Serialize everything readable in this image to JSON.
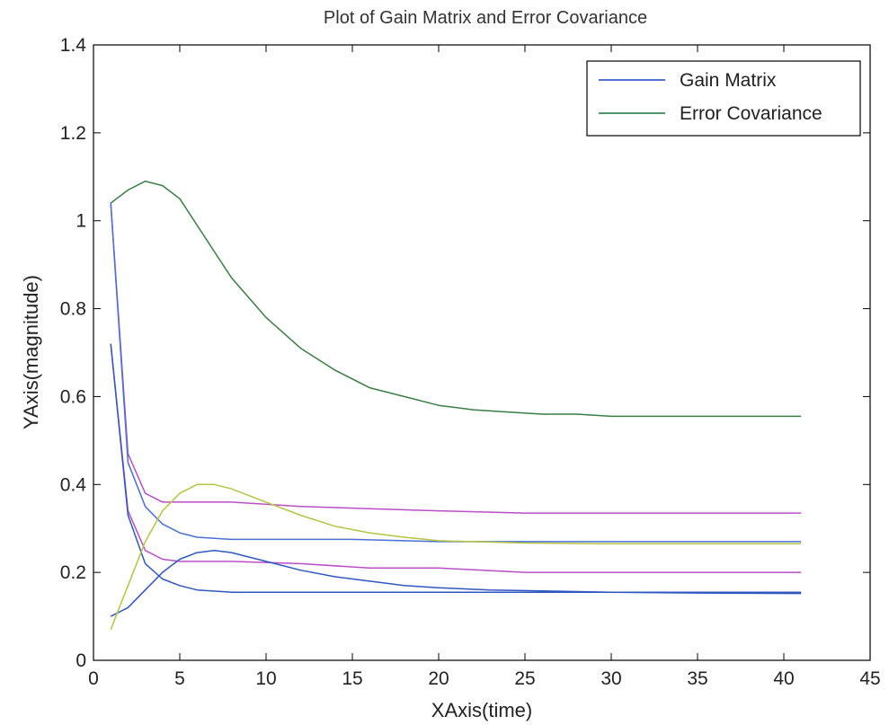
{
  "chart_data": {
    "type": "line",
    "title": "Plot of Gain Matrix and Error Covariance",
    "xlabel": "XAxis(time)",
    "ylabel": "YAxis(magnitude)",
    "xlim": [
      0,
      45
    ],
    "ylim": [
      0,
      1.4
    ],
    "xticks": [
      0,
      5,
      10,
      15,
      20,
      25,
      30,
      35,
      40,
      45
    ],
    "yticks": [
      0,
      0.2,
      0.4,
      0.6,
      0.8,
      1,
      1.2,
      1.4
    ],
    "xtick_labels": [
      "0",
      "5",
      "10",
      "15",
      "20",
      "25",
      "30",
      "35",
      "40",
      "45"
    ],
    "ytick_labels": [
      "0",
      "0.2",
      "0.4",
      "0.6",
      "0.8",
      "1",
      "1.2",
      "1.4"
    ],
    "grid": false,
    "legend": {
      "position": "top-right",
      "entries": [
        {
          "label": "Gain Matrix",
          "color": "#3a5fcd"
        },
        {
          "label": "Error Covariance",
          "color": "#2e8b57"
        }
      ]
    },
    "series": [
      {
        "color": "#3a7d44",
        "x": [
          1,
          2,
          3,
          4,
          5,
          6,
          7,
          8,
          10,
          12,
          14,
          16,
          18,
          20,
          22,
          24,
          26,
          28,
          30,
          32,
          35,
          38,
          41
        ],
        "y": [
          1.04,
          1.07,
          1.09,
          1.08,
          1.05,
          0.99,
          0.93,
          0.87,
          0.78,
          0.71,
          0.66,
          0.62,
          0.6,
          0.58,
          0.57,
          0.565,
          0.56,
          0.56,
          0.555,
          0.555,
          0.555,
          0.555,
          0.555
        ]
      },
      {
        "color": "#b94fc6",
        "x": [
          1,
          2,
          3,
          4,
          5,
          8,
          12,
          16,
          20,
          25,
          30,
          35,
          41
        ],
        "y": [
          1.04,
          0.47,
          0.38,
          0.36,
          0.36,
          0.36,
          0.35,
          0.345,
          0.34,
          0.335,
          0.335,
          0.335,
          0.335
        ]
      },
      {
        "color": "#b94fc6",
        "x": [
          1,
          2,
          3,
          4,
          5,
          8,
          12,
          16,
          20,
          25,
          30,
          35,
          41
        ],
        "y": [
          0.72,
          0.34,
          0.25,
          0.23,
          0.225,
          0.225,
          0.22,
          0.21,
          0.21,
          0.2,
          0.2,
          0.2,
          0.2
        ]
      },
      {
        "color": "#4a6fd8",
        "x": [
          1,
          2,
          3,
          4,
          5,
          6,
          8,
          10,
          15,
          20,
          25,
          30,
          35,
          41
        ],
        "y": [
          1.04,
          0.45,
          0.35,
          0.31,
          0.29,
          0.28,
          0.275,
          0.275,
          0.275,
          0.27,
          0.27,
          0.27,
          0.27,
          0.27
        ]
      },
      {
        "color": "#3056c0",
        "x": [
          1,
          2,
          3,
          4,
          5,
          6,
          8,
          10,
          15,
          20,
          25,
          30,
          35,
          41
        ],
        "y": [
          0.72,
          0.33,
          0.22,
          0.185,
          0.17,
          0.16,
          0.155,
          0.155,
          0.155,
          0.155,
          0.155,
          0.155,
          0.155,
          0.155
        ]
      },
      {
        "color": "#3056c0",
        "x": [
          1,
          2,
          3,
          4,
          5,
          6,
          7,
          8,
          10,
          12,
          14,
          16,
          18,
          20,
          23,
          26,
          30,
          35,
          41
        ],
        "y": [
          0.1,
          0.12,
          0.16,
          0.2,
          0.23,
          0.245,
          0.25,
          0.245,
          0.225,
          0.205,
          0.19,
          0.18,
          0.17,
          0.165,
          0.16,
          0.158,
          0.155,
          0.153,
          0.152
        ]
      },
      {
        "color": "#b5c441",
        "x": [
          1,
          2,
          3,
          4,
          5,
          6,
          7,
          8,
          10,
          12,
          14,
          16,
          18,
          20,
          22,
          25,
          30,
          35,
          41
        ],
        "y": [
          0.07,
          0.17,
          0.27,
          0.34,
          0.38,
          0.4,
          0.4,
          0.39,
          0.36,
          0.33,
          0.305,
          0.29,
          0.28,
          0.272,
          0.27,
          0.267,
          0.265,
          0.265,
          0.265
        ]
      }
    ]
  }
}
